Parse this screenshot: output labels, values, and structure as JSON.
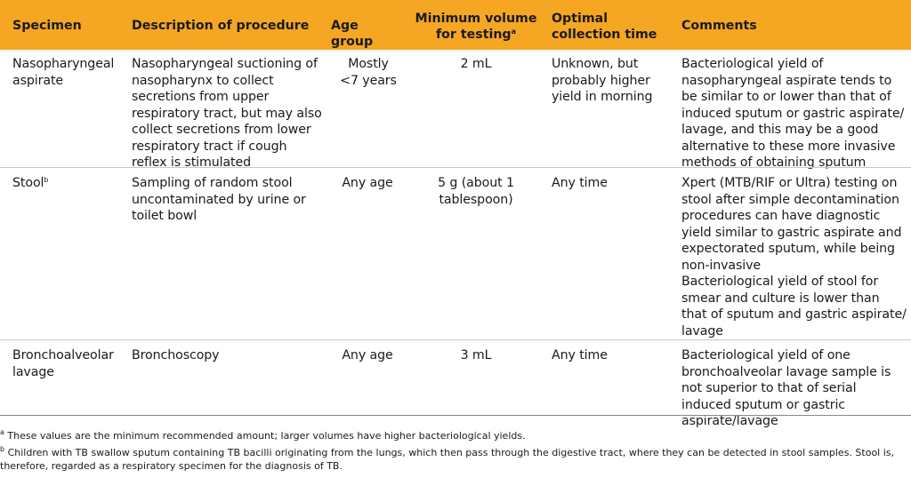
{
  "headers": {
    "specimen": "Specimen",
    "description": "Description of procedure",
    "age_group": "Age group",
    "min_volume": "Minimum volume for testing",
    "min_volume_sup": "a",
    "optimal_time": "Optimal collection time",
    "comments": "Comments"
  },
  "rows": [
    {
      "specimen": "Nasopharyngeal aspirate",
      "specimen_sup": "",
      "description": "Nasopharyngeal suctioning of nasopharynx to collect secretions from upper respiratory tract, but may also collect secretions from lower respiratory tract if cough reflex is stimulated",
      "age_group": "Mostly <7 years",
      "min_volume": "2 mL",
      "optimal_time": "Unknown, but probably higher yield in morning",
      "comments": [
        "Bacteriological yield of nasopharyngeal aspirate tends to be similar to or lower than that of induced sputum or gastric aspirate/ lavage, and this may be a good alternative to these more invasive methods of obtaining sputum"
      ]
    },
    {
      "specimen": "Stool",
      "specimen_sup": "b",
      "description": "Sampling of random stool uncontaminated by urine or toilet bowl",
      "age_group": "Any age",
      "min_volume": "5 g (about 1 tablespoon)",
      "optimal_time": "Any time",
      "comments": [
        "Xpert (MTB/RIF or Ultra) testing on stool after simple decontamination procedures can have diagnostic yield similar to gastric aspirate and expectorated sputum, while being non-invasive",
        "Bacteriological yield of stool for smear and culture is lower than that of sputum and gastric aspirate/ lavage"
      ]
    },
    {
      "specimen": "Bronchoalveolar lavage",
      "specimen_sup": "",
      "description": "Bronchoscopy",
      "age_group": "Any age",
      "min_volume": "3 mL",
      "optimal_time": "Any time",
      "comments": [
        "Bacteriological yield of one bronchoalveolar lavage sample is not superior to that of serial induced sputum or gastric aspirate/lavage"
      ]
    }
  ],
  "footnotes": [
    {
      "mark": "a",
      "text": "These values are the minimum recommended amount; larger volumes have higher bacteriological yields."
    },
    {
      "mark": "b",
      "text": "Children with TB swallow sputum containing TB bacilli originating from the lungs, which then pass through the digestive tract, where they can be detected in stool samples. Stool is, therefore, regarded as a respiratory specimen for the diagnosis of TB."
    }
  ],
  "colors": {
    "header_band": "#f5a623",
    "rule": "#c9c9c9"
  }
}
